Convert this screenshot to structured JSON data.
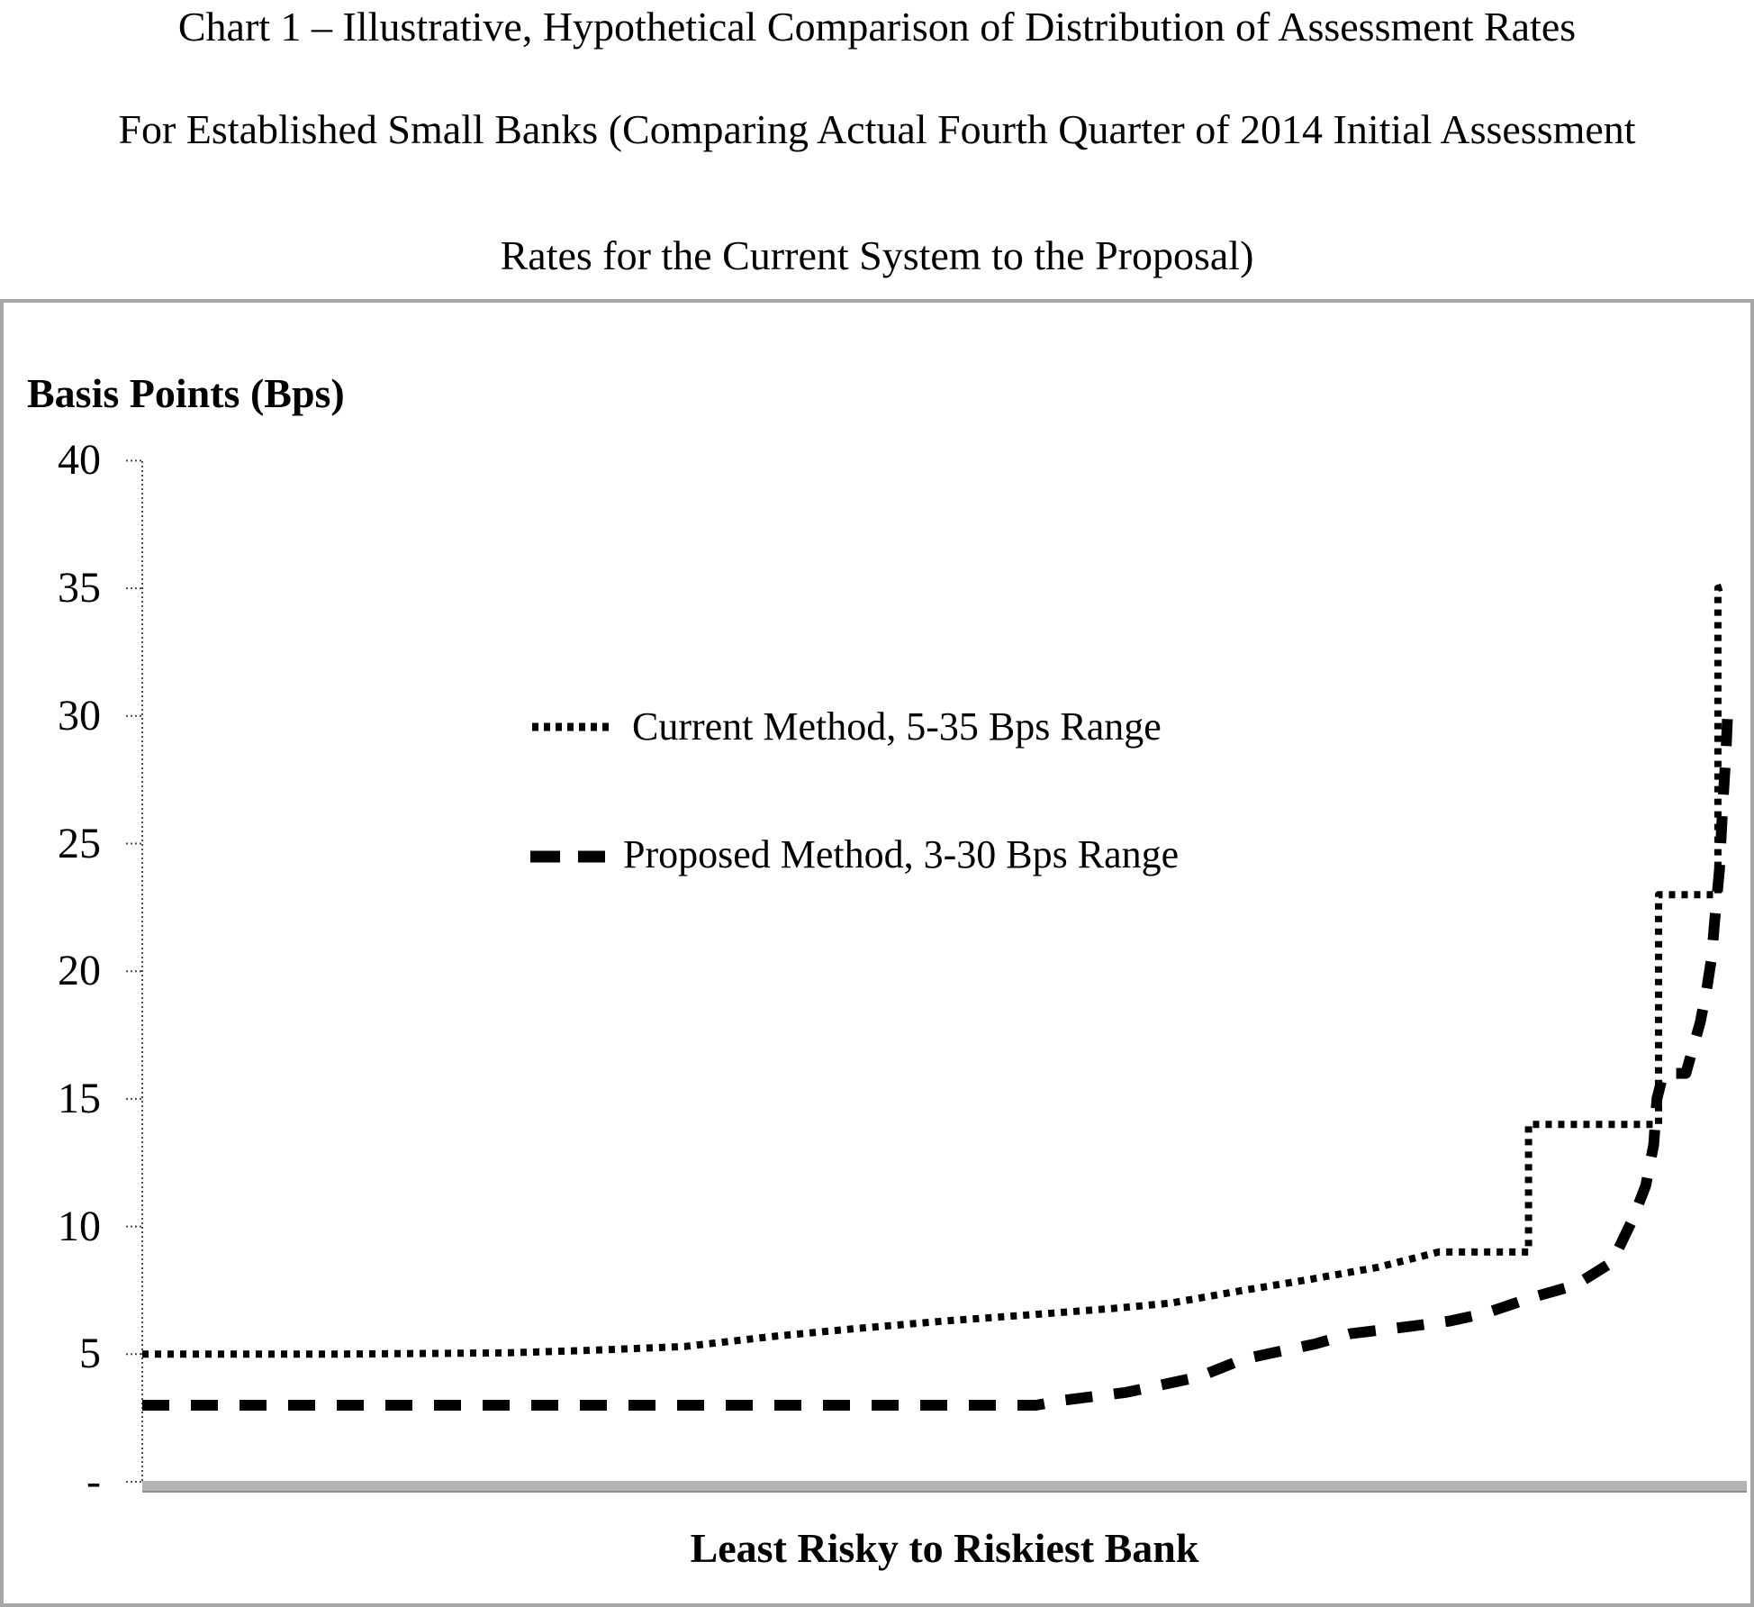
{
  "title": {
    "line1": "Chart 1 – Illustrative, Hypothetical Comparison of Distribution of Assessment Rates",
    "line2": "For Established Small Banks (Comparing Actual Fourth Quarter of 2014 Initial Assessment",
    "line3": "Rates for the Current System to the Proposal)"
  },
  "y_axis": {
    "title": "Basis Points (Bps)",
    "ticks": [
      {
        "value": 40,
        "label": "40"
      },
      {
        "value": 35,
        "label": "35"
      },
      {
        "value": 30,
        "label": "30"
      },
      {
        "value": 25,
        "label": "25"
      },
      {
        "value": 20,
        "label": "20"
      },
      {
        "value": 15,
        "label": "15"
      },
      {
        "value": 10,
        "label": "10"
      },
      {
        "value": 5,
        "label": "5"
      },
      {
        "value": 0,
        "label": "-"
      }
    ]
  },
  "x_axis": {
    "title": "Least Risky to Riskiest Bank"
  },
  "legend": {
    "items": [
      {
        "label": "Current Method, 5-35 Bps Range",
        "style": "dotted"
      },
      {
        "label": "Proposed Method, 3-30 Bps Range",
        "style": "dashed"
      }
    ]
  },
  "chart_data": {
    "type": "line",
    "title": "Chart 1 – Illustrative, Hypothetical Comparison of Distribution of Assessment Rates For Established Small Banks (Comparing Actual Fourth Quarter of 2014 Initial Assessment Rates for the Current System to the Proposal)",
    "xlabel": "Least Risky to Riskiest Bank",
    "ylabel": "Basis Points (Bps)",
    "ylim": [
      0,
      40
    ],
    "yticks": [
      0,
      5,
      10,
      15,
      20,
      25,
      30,
      35,
      40
    ],
    "ytick_labels": [
      "-",
      "5",
      "10",
      "15",
      "20",
      "25",
      "30",
      "35",
      "40"
    ],
    "grid": false,
    "legend_position": "inside upper-center-left",
    "x_units": "percent of banks ordered least risky to riskiest (0-100, unlabeled axis)",
    "series": [
      {
        "name": "Current Method, 5-35 Bps Range",
        "line_style": "dotted",
        "points": [
          [
            0,
            5
          ],
          [
            12,
            5
          ],
          [
            22.6,
            5.05
          ],
          [
            28,
            5.15
          ],
          [
            33.8,
            5.3
          ],
          [
            39.4,
            5.7
          ],
          [
            44.4,
            6.0
          ],
          [
            50,
            6.3
          ],
          [
            55.5,
            6.55
          ],
          [
            60.7,
            6.8
          ],
          [
            64.1,
            7.0
          ],
          [
            68.6,
            7.5
          ],
          [
            72.5,
            7.9
          ],
          [
            77,
            8.4
          ],
          [
            80.8,
            9.0
          ],
          [
            86.4,
            9.0
          ],
          [
            86.4,
            14.0
          ],
          [
            94.5,
            14.0
          ],
          [
            94.5,
            23.0
          ],
          [
            98.2,
            23.0
          ],
          [
            98.2,
            35.0
          ],
          [
            98.7,
            35.1
          ]
        ]
      },
      {
        "name": "Proposed Method, 3-30 Bps Range",
        "line_style": "dashed",
        "points": [
          [
            0,
            3
          ],
          [
            55.7,
            3
          ],
          [
            57.5,
            3.2
          ],
          [
            61.3,
            3.5
          ],
          [
            65.8,
            4.1
          ],
          [
            68.6,
            4.8
          ],
          [
            70.8,
            5.1
          ],
          [
            73.1,
            5.4
          ],
          [
            75.3,
            5.8
          ],
          [
            79.2,
            6.1
          ],
          [
            81.5,
            6.3
          ],
          [
            83.7,
            6.6
          ],
          [
            86.5,
            7.2
          ],
          [
            89.3,
            7.7
          ],
          [
            91.6,
            8.6
          ],
          [
            92.9,
            10.3
          ],
          [
            93.7,
            11.6
          ],
          [
            94.2,
            13.2
          ],
          [
            94.4,
            15.0
          ],
          [
            94.8,
            16.0
          ],
          [
            96.2,
            16.0
          ],
          [
            97.1,
            18.0
          ],
          [
            97.5,
            19.3
          ],
          [
            97.8,
            20.5
          ],
          [
            98.0,
            22.0
          ],
          [
            98.3,
            24.0
          ],
          [
            98.5,
            26.5
          ],
          [
            98.7,
            28.5
          ],
          [
            98.8,
            30.0
          ]
        ]
      }
    ]
  }
}
